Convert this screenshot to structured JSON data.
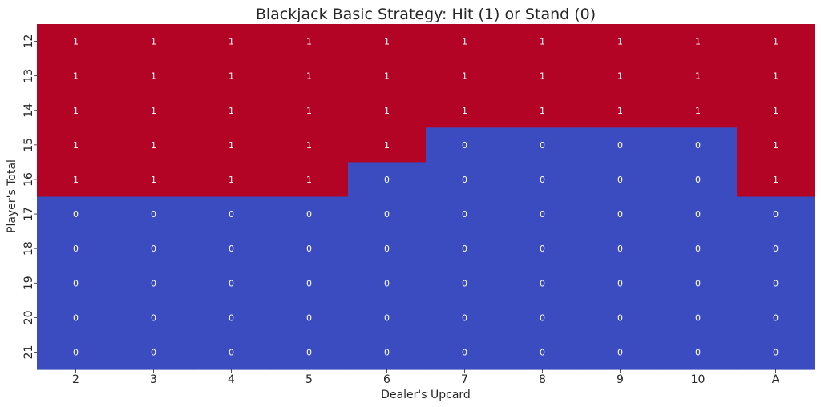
{
  "chart_data": {
    "type": "heatmap",
    "title": "Blackjack Basic Strategy: Hit (1) or Stand (0)",
    "xlabel": "Dealer's Upcard",
    "ylabel": "Player's Total",
    "x_categories": [
      "2",
      "3",
      "4",
      "5",
      "6",
      "7",
      "8",
      "9",
      "10",
      "A"
    ],
    "y_categories": [
      "12",
      "13",
      "14",
      "15",
      "16",
      "17",
      "18",
      "19",
      "20",
      "21"
    ],
    "values": [
      [
        1,
        1,
        1,
        1,
        1,
        1,
        1,
        1,
        1,
        1
      ],
      [
        1,
        1,
        1,
        1,
        1,
        1,
        1,
        1,
        1,
        1
      ],
      [
        1,
        1,
        1,
        1,
        1,
        1,
        1,
        1,
        1,
        1
      ],
      [
        1,
        1,
        1,
        1,
        1,
        0,
        0,
        0,
        0,
        1
      ],
      [
        1,
        1,
        1,
        1,
        0,
        0,
        0,
        0,
        0,
        1
      ],
      [
        0,
        0,
        0,
        0,
        0,
        0,
        0,
        0,
        0,
        0
      ],
      [
        0,
        0,
        0,
        0,
        0,
        0,
        0,
        0,
        0,
        0
      ],
      [
        0,
        0,
        0,
        0,
        0,
        0,
        0,
        0,
        0,
        0
      ],
      [
        0,
        0,
        0,
        0,
        0,
        0,
        0,
        0,
        0,
        0
      ],
      [
        0,
        0,
        0,
        0,
        0,
        0,
        0,
        0,
        0,
        0
      ]
    ],
    "colors": {
      "1": "#b40426",
      "0": "#3b4cc0"
    },
    "annotations": true,
    "legend": false,
    "grid": false
  }
}
